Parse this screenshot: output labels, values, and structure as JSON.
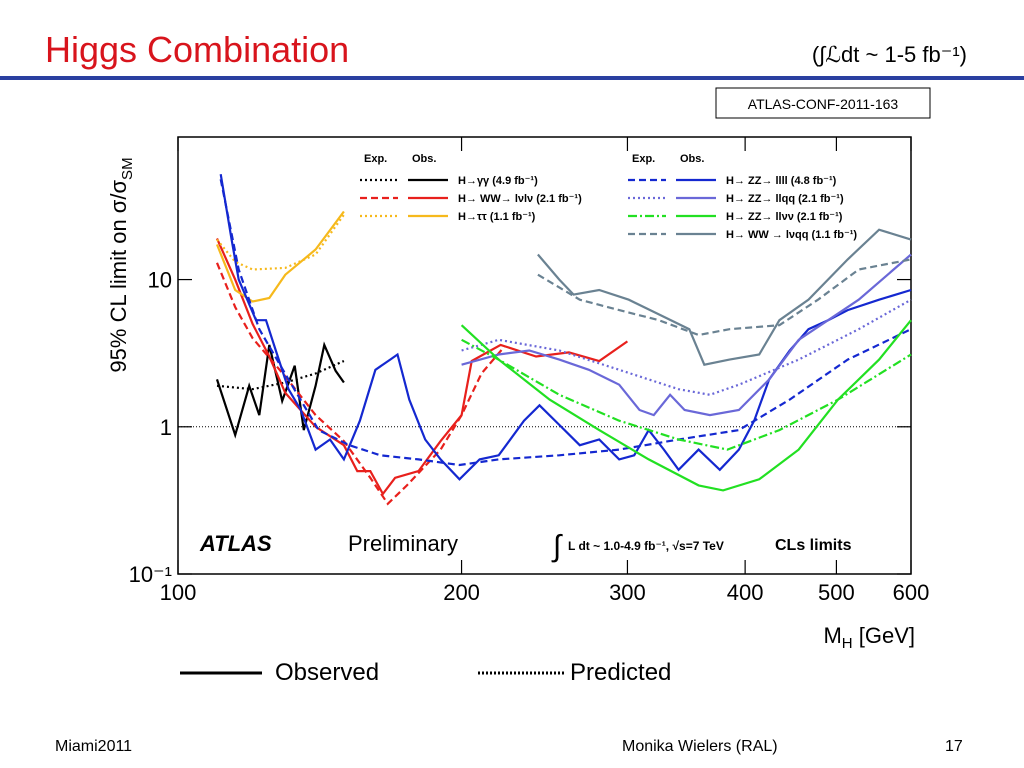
{
  "slide": {
    "title": "Higgs Combination",
    "subtitle": "(∫ℒdt ~ 1-5 fb⁻¹)",
    "reference": "ATLAS-CONF-2011-163",
    "observed_label": "Observed",
    "predicted_label": "Predicted",
    "footer_left": "Miami2011",
    "footer_center": "Monika Wielers (RAL)",
    "page_number": "17"
  },
  "chart_data": {
    "type": "line",
    "xlabel": {
      "text": "M",
      "sub": "H",
      "rest": " [GeV]"
    },
    "ylabel": {
      "text": "95% CL limit on σ/σ",
      "sub": "SM"
    },
    "xscale": "log",
    "yscale": "log",
    "xlim": [
      100,
      600
    ],
    "ylim": [
      0.1,
      93
    ],
    "xticks": [
      100,
      200,
      300,
      400,
      500,
      600
    ],
    "yticks": [
      {
        "value": 0.1,
        "label": "10⁻¹"
      },
      1,
      10
    ],
    "reference_line": 1,
    "legend_headers": [
      "Exp.",
      "Obs."
    ],
    "annotations": {
      "experiment": "ATLAS",
      "status": "Preliminary",
      "integral": "∫",
      "lumi": "L dt ~ 1.0-4.9 fb⁻¹, √s=7 TeV",
      "method": "CLs limits"
    },
    "channels": [
      {
        "name": "H→γγ  (4.9 fb⁻¹)",
        "color": "#000000",
        "exp_style": "dotted",
        "expected": {
          "x": [
            110,
            120,
            130,
            140,
            150
          ],
          "values": [
            1.9,
            1.8,
            2.0,
            2.3,
            2.8
          ]
        },
        "observed": {
          "x": [
            110,
            115,
            119,
            122,
            125,
            129,
            133,
            136,
            140,
            143,
            147,
            150
          ],
          "values": [
            2.1,
            0.88,
            1.9,
            1.2,
            3.6,
            1.5,
            2.6,
            0.95,
            1.9,
            3.6,
            2.4,
            2.0
          ]
        }
      },
      {
        "name": "H→ WW→ lνlν  (2.1 fb⁻¹)",
        "color": "#e8201c",
        "exp_style": "dashed",
        "expected": {
          "x": [
            110,
            115,
            120,
            130,
            140,
            150,
            160,
            167,
            175,
            190,
            200,
            210,
            222
          ],
          "values": [
            13,
            6.5,
            4.0,
            2.2,
            1.2,
            0.8,
            0.45,
            0.3,
            0.4,
            0.7,
            1.2,
            2.3,
            3.5
          ]
        },
        "observed": {
          "x": [
            110,
            115,
            120,
            125,
            130,
            140,
            150,
            155,
            160,
            165,
            170,
            180,
            190,
            200,
            205,
            220,
            240,
            260,
            280,
            300
          ],
          "values": [
            19,
            10,
            5,
            3,
            1.7,
            1.0,
            0.75,
            0.5,
            0.5,
            0.35,
            0.45,
            0.5,
            0.8,
            1.2,
            2.8,
            3.6,
            3.0,
            3.2,
            2.8,
            3.8
          ]
        }
      },
      {
        "name": "H→ττ  (1.1 fb⁻¹)",
        "color": "#f6b91c",
        "exp_style": "dotted",
        "expected": {
          "x": [
            110,
            115,
            120,
            130,
            140,
            150
          ],
          "values": [
            18.7,
            13.2,
            11.7,
            12,
            14.8,
            27.6
          ]
        },
        "observed": {
          "x": [
            110,
            115,
            120,
            125,
            130,
            140,
            150
          ],
          "values": [
            17.3,
            8.5,
            7.1,
            7.5,
            10.8,
            16,
            29
          ]
        }
      },
      {
        "name": "H→ ZZ→ llll  (4.8 fb⁻¹)",
        "color": "#1428d0",
        "exp_style": "dashed",
        "expected": {
          "x": [
            111,
            116,
            122,
            131,
            141,
            152,
            164,
            180,
            199,
            219,
            254,
            294,
            340,
            394,
            446,
            514,
            600
          ],
          "values": [
            48,
            11.7,
            4.6,
            2.1,
            0.95,
            0.75,
            0.64,
            0.6,
            0.55,
            0.6,
            0.64,
            0.7,
            0.82,
            0.95,
            1.53,
            2.86,
            4.6
          ]
        },
        "observed": {
          "x": [
            111,
            114,
            116,
            121,
            124,
            127,
            131,
            135,
            140,
            145,
            150,
            156,
            162,
            168,
            171,
            176,
            183,
            190,
            199,
            209,
            219,
            233,
            242,
            254,
            267,
            280,
            294,
            305,
            316,
            328,
            340,
            357,
            376,
            394,
            409,
            424,
            446,
            467,
            490,
            514,
            555,
            600
          ],
          "values": [
            52,
            18.7,
            10,
            5.3,
            5.3,
            3.3,
            1.8,
            1.3,
            0.7,
            0.82,
            0.6,
            1.1,
            2.44,
            2.86,
            3.1,
            1.53,
            0.82,
            0.6,
            0.44,
            0.6,
            0.64,
            1.1,
            1.4,
            1.03,
            0.75,
            0.82,
            0.6,
            0.64,
            0.95,
            0.7,
            0.51,
            0.7,
            0.51,
            0.7,
            1.1,
            2.09,
            3.3,
            4.6,
            5.3,
            6.2,
            7.3,
            8.5
          ]
        }
      },
      {
        "name": "H→ ZZ→ llqq  (2.1 fb⁻¹)",
        "color": "#6a68d8",
        "exp_style": "dotted",
        "expected": {
          "x": [
            200,
            219,
            254,
            294,
            340,
            367,
            394,
            456,
            528,
            600
          ],
          "values": [
            3.3,
            3.9,
            3.3,
            2.44,
            1.8,
            1.65,
            1.93,
            2.86,
            4.6,
            7.3
          ]
        },
        "observed": {
          "x": [
            200,
            219,
            236,
            254,
            273,
            294,
            309,
            320,
            333,
            345,
            367,
            394,
            424,
            456,
            490,
            528,
            600
          ],
          "values": [
            2.64,
            3.1,
            3.3,
            2.86,
            2.44,
            1.93,
            1.3,
            1.2,
            1.65,
            1.3,
            1.2,
            1.3,
            2.09,
            3.9,
            5.3,
            7.3,
            14.8
          ]
        }
      },
      {
        "name": "H→ ZZ→ llνν  (2.1 fb⁻¹)",
        "color": "#22e022",
        "exp_style": "dashdot",
        "expected": {
          "x": [
            200,
            219,
            254,
            294,
            340,
            383,
            435,
            502,
            600
          ],
          "values": [
            3.9,
            2.86,
            1.65,
            1.1,
            0.82,
            0.7,
            0.95,
            1.53,
            3.1
          ]
        },
        "observed": {
          "x": [
            200,
            219,
            248,
            280,
            316,
            357,
            379,
            414,
            456,
            502,
            555,
            600
          ],
          "values": [
            4.9,
            2.86,
            1.53,
            0.95,
            0.6,
            0.4,
            0.37,
            0.44,
            0.7,
            1.53,
            2.86,
            5.3
          ]
        }
      },
      {
        "name": "H→ WW → lνqq  (1.1 fb⁻¹)",
        "color": "#6a8292",
        "exp_style": "dashed",
        "expected": {
          "x": [
            241,
            267,
            294,
            324,
            357,
            385,
            435,
            478,
            528,
            600
          ],
          "values": [
            10.8,
            7.3,
            6.2,
            5.3,
            4.2,
            4.6,
            4.9,
            7.3,
            11.7,
            13.7
          ]
        },
        "observed": {
          "x": [
            241,
            254,
            263,
            280,
            301,
            324,
            349,
            362,
            385,
            414,
            435,
            467,
            514,
            555,
            600
          ],
          "values": [
            14.8,
            10,
            7.9,
            8.5,
            7.3,
            5.8,
            4.6,
            2.64,
            2.86,
            3.1,
            5.3,
            7.3,
            13.7,
            21.8,
            18.7
          ]
        }
      }
    ]
  }
}
